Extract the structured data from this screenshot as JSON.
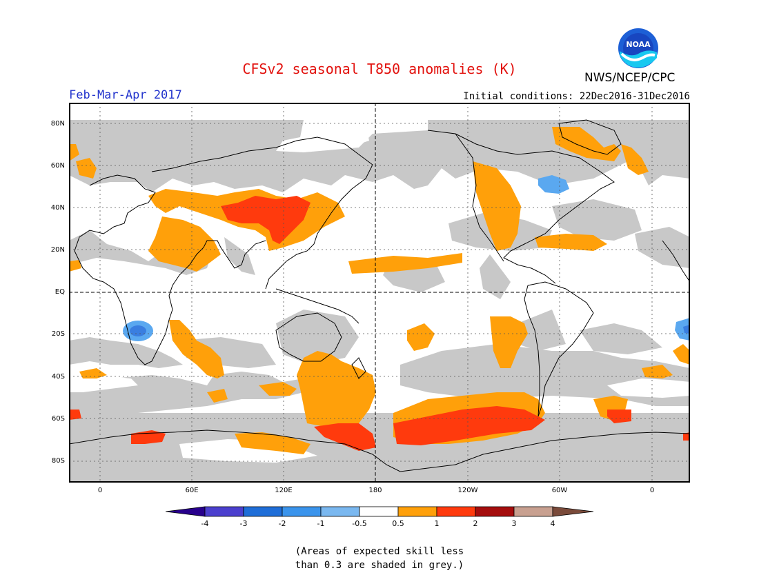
{
  "header": {
    "title": "CFSv2 seasonal T850 anomalies (K)",
    "season": "Feb-Mar-Apr 2017",
    "initial_conditions": "Initial conditions: 22Dec2016-31Dec2016",
    "agency": "NWS/NCEP/CPC",
    "logo_text": "NOAA"
  },
  "map": {
    "lat_labels": [
      "80N",
      "60N",
      "40N",
      "20N",
      "EQ",
      "20S",
      "40S",
      "60S",
      "80S"
    ],
    "lon_labels": [
      "0",
      "60E",
      "120E",
      "180",
      "120W",
      "60W",
      "0"
    ],
    "projection": "equirectangular"
  },
  "colorbar": {
    "labels": [
      "-4",
      "-3",
      "-2",
      "-1",
      "-0.5",
      "0.5",
      "1",
      "2",
      "3",
      "4"
    ],
    "colors": [
      "#28008c",
      "#4b3fce",
      "#1f6ed8",
      "#3a94ec",
      "#7ab8f0",
      "#ffffff",
      "#ffa00a",
      "#ff3a0d",
      "#a50d0d",
      "#c8a090",
      "#7a4a3a"
    ]
  },
  "legend_colors": {
    "grey_skill": "#c8c8c8",
    "orange": "#ffa00a",
    "red": "#ff3a0d",
    "light_blue": "#5aa8f0",
    "blue": "#3a7ee0"
  },
  "note": {
    "line1": "(Areas of expected skill less",
    "line2": "than 0.3 are shaded in grey.)"
  }
}
